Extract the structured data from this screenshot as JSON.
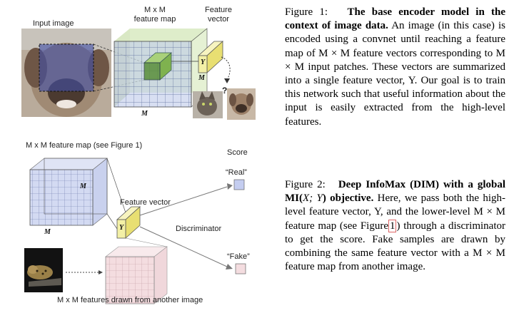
{
  "figure1": {
    "labels": {
      "input_image": "Input image",
      "feature_map": "M x M\nfeature map",
      "feature_vector": "Feature\nvector",
      "Y": "Y",
      "M_side": "M",
      "M_bottom": "M",
      "question": "?"
    },
    "caption": {
      "fig_label": "Figure 1:",
      "title": "The base encoder model in the context of image data.",
      "body": "An image (in this case) is encoded using a convnet until reaching a feature map of M × M feature vectors corresponding to M × M input patches. These vectors are summarized into a single feature vector, Y. Our goal is to train this network such that useful information about the input is easily extracted from the high-level features."
    }
  },
  "figure2": {
    "labels": {
      "feature_map_title": "M x M feature map (see Figure 1)",
      "score": "Score",
      "real": "“Real”",
      "fake": "“Fake”",
      "feature_vector": "Feature vector",
      "discriminator": "Discriminator",
      "Y": "Y",
      "M_side": "M",
      "M_bottom": "M",
      "bottom_caption": "M x M features drawn from another image"
    },
    "caption": {
      "fig_label": "Figure 2:",
      "title_a": "Deep InfoMax (DIM) with a global MI(",
      "title_math": "X; Y",
      "title_b": ") objective.",
      "body_a": "Here, we pass both the high-level feature vector, Y, and the lower-level M × M feature map (see Figure",
      "ref": "1",
      "body_b": ") through a discriminator to get the score. Fake samples are drawn by combining the same feature vector with a M × M feature map from another image."
    }
  },
  "colors": {
    "blue_fill": "#b8c4e8",
    "green_fill": "#cfe6b0",
    "yellow_fill": "#f3f0a6",
    "pink_fill": "#f4dde0",
    "dog_fur": "#a89584",
    "dark_bg": "#1a1a1a"
  }
}
